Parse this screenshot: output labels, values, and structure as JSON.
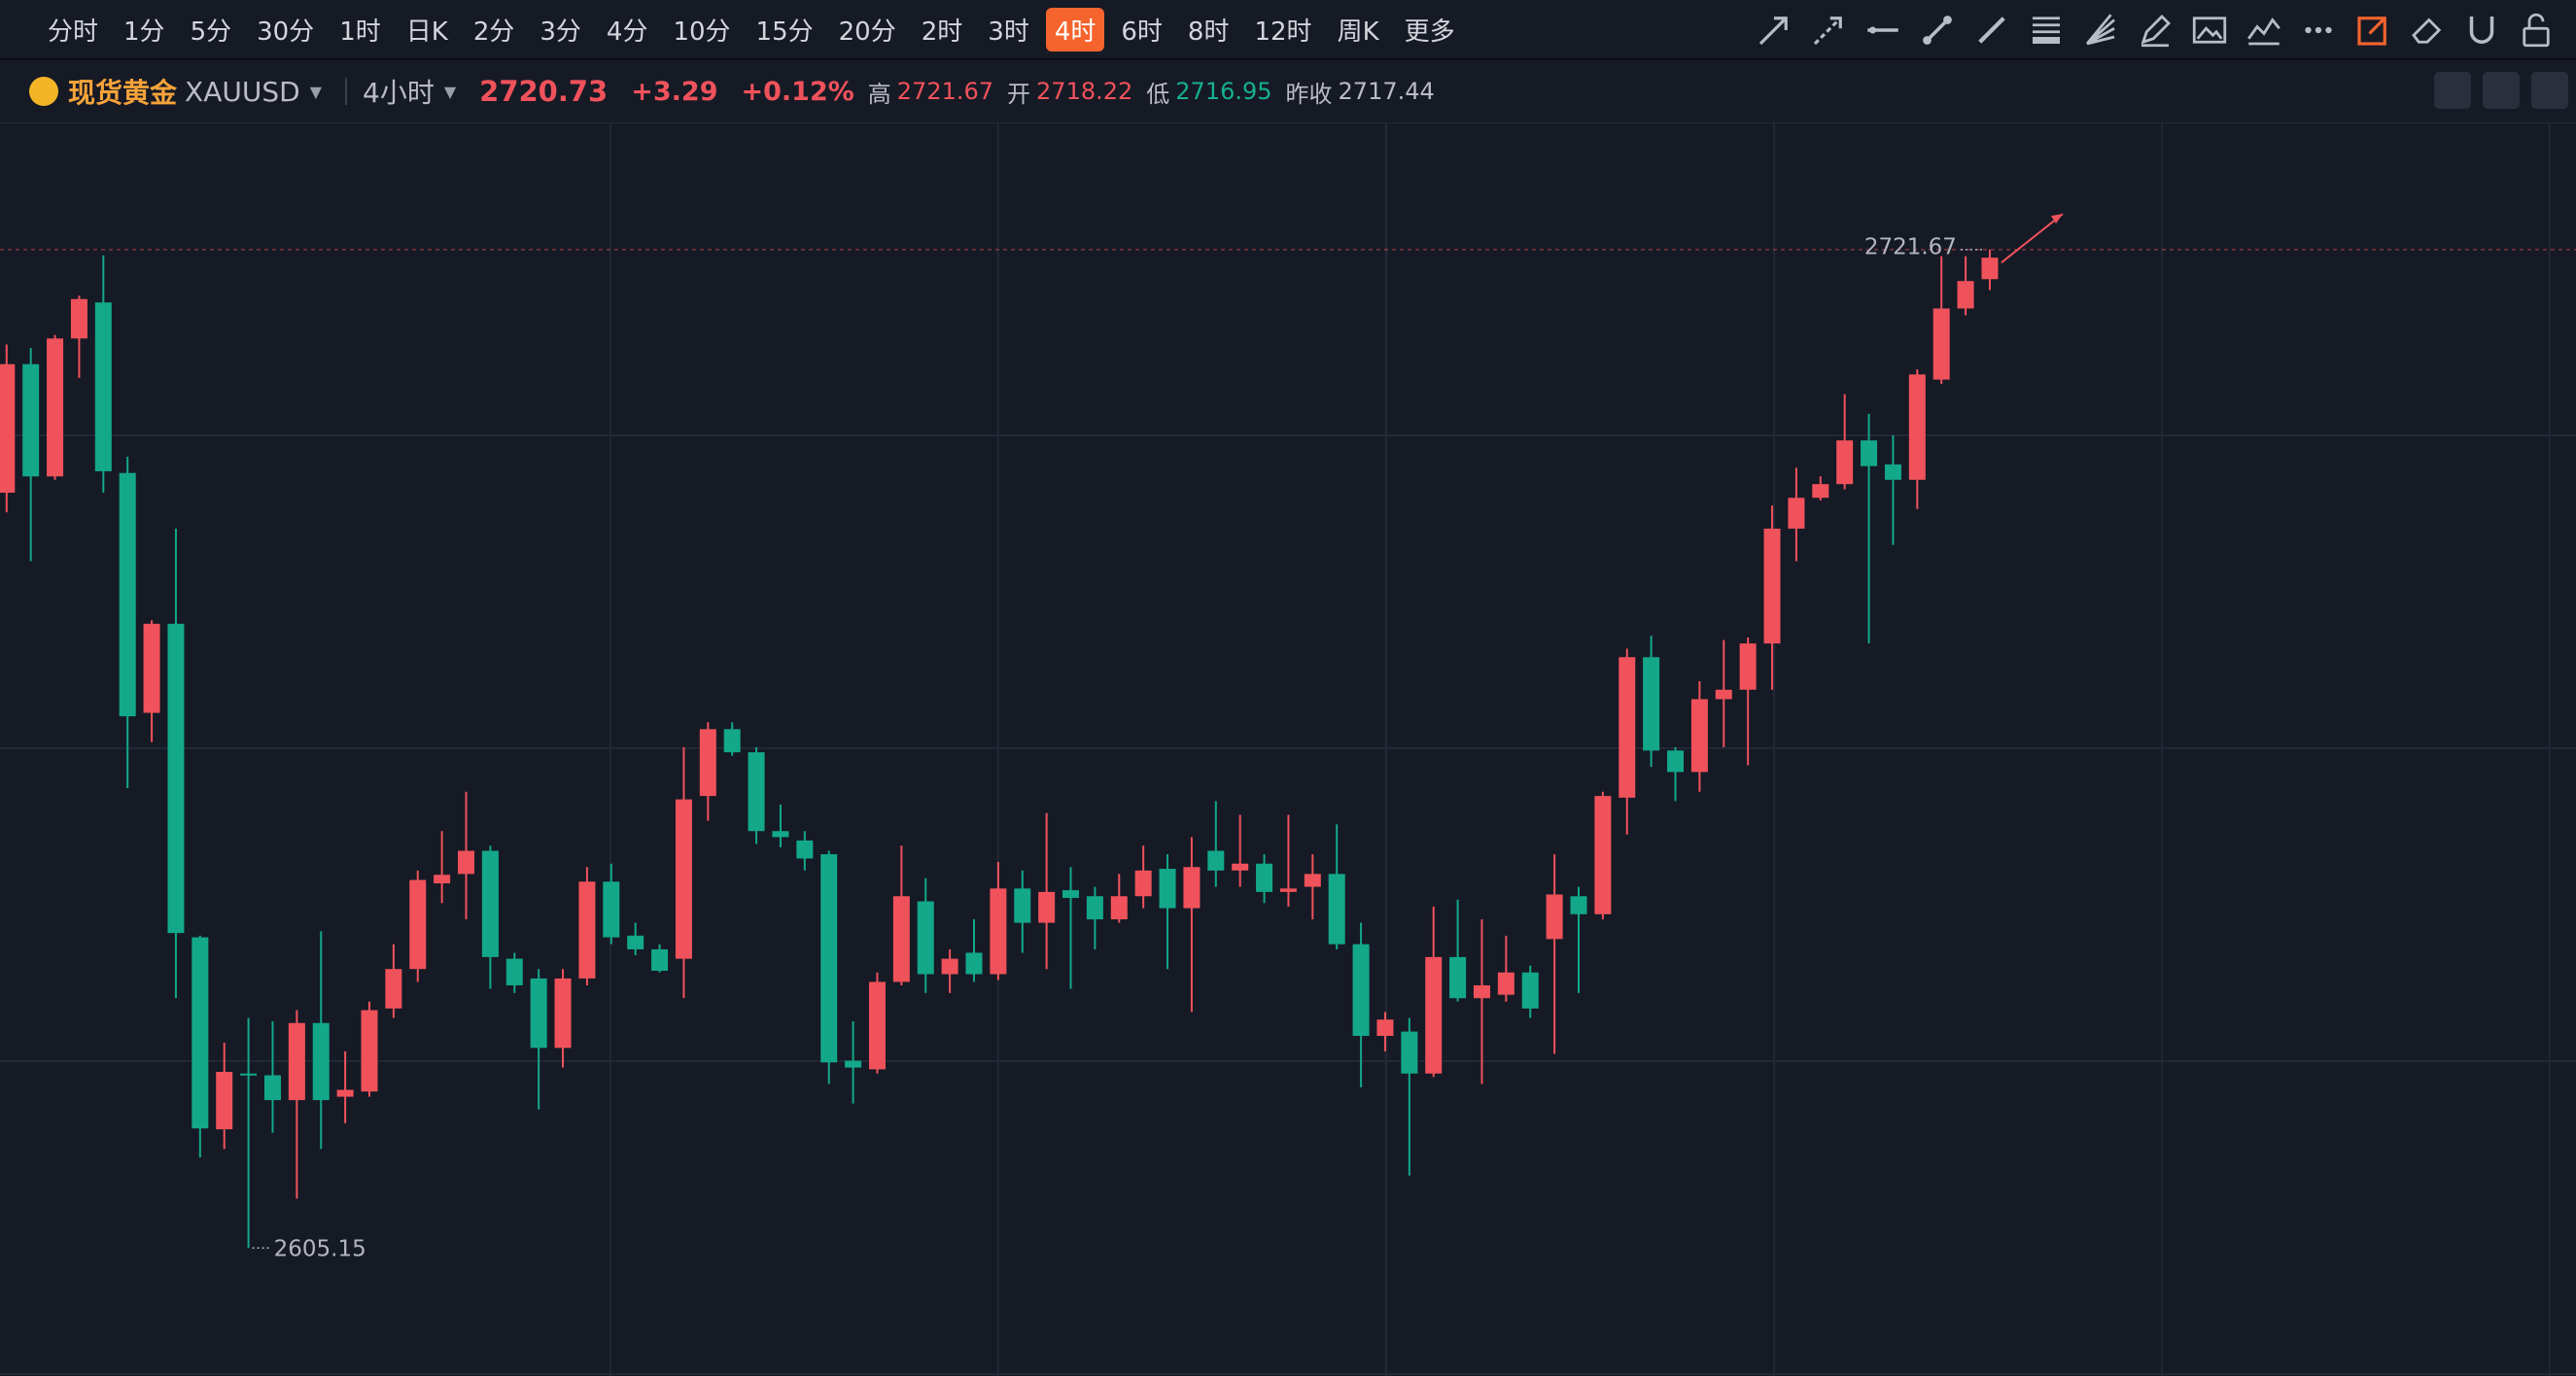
{
  "toolbar": {
    "items": [
      "分时",
      "1分",
      "5分",
      "30分",
      "1时",
      "日K",
      "2分",
      "3分",
      "4分",
      "10分",
      "15分",
      "20分",
      "2时",
      "3时",
      "4时",
      "6时",
      "8时",
      "12时",
      "周K",
      "更多"
    ],
    "selected": "4时"
  },
  "header": {
    "name": "现货黄金",
    "code": "XAUUSD",
    "interval": "4小时",
    "price": "2720.73",
    "change": "+3.29",
    "change_pct": "+0.12%",
    "high_label": "高",
    "high": "2721.67",
    "open_label": "开",
    "open": "2718.22",
    "low_label": "低",
    "low": "2716.95",
    "prev_label": "昨收",
    "prev": "2717.44"
  },
  "chart_data": {
    "type": "candlestick",
    "up_color": "#f0525b",
    "down_color": "#13a88a",
    "ylim": [
      2590.2,
      2736.4
    ],
    "open": [
      2693.3,
      2708.3,
      2695.2,
      2711.3,
      2715.5,
      2695.6,
      2667.6,
      2678.0,
      2641.4,
      2619.0,
      2625.5,
      2625.3,
      2622.4,
      2631.4,
      2622.8,
      2623.4,
      2633.1,
      2637.7,
      2647.7,
      2648.8,
      2651.5,
      2638.9,
      2636.6,
      2628.5,
      2636.6,
      2647.9,
      2641.6,
      2640.0,
      2638.9,
      2657.9,
      2665.7,
      2663.0,
      2653.8,
      2652.7,
      2651.1,
      2627.0,
      2626.0,
      2636.2,
      2645.6,
      2637.1,
      2639.6,
      2637.1,
      2647.1,
      2643.1,
      2646.9,
      2646.2,
      2643.5,
      2646.2,
      2649.4,
      2644.8,
      2651.5,
      2649.2,
      2650.0,
      2646.7,
      2647.3,
      2648.8,
      2640.6,
      2629.9,
      2630.4,
      2625.5,
      2639.1,
      2634.3,
      2634.7,
      2637.3,
      2641.2,
      2646.2,
      2644.1,
      2657.7,
      2674.1,
      2663.2,
      2660.7,
      2669.2,
      2670.3,
      2675.7,
      2689.1,
      2692.7,
      2694.3,
      2699.4,
      2696.6,
      2694.8,
      2706.5,
      2714.8,
      2718.22
    ],
    "high": [
      2710.6,
      2710.2,
      2711.7,
      2716.3,
      2721.0,
      2697.5,
      2678.4,
      2689.1,
      2641.6,
      2629.1,
      2632.0,
      2631.6,
      2632.9,
      2642.1,
      2628.1,
      2633.9,
      2640.6,
      2649.2,
      2653.8,
      2658.4,
      2652.1,
      2639.6,
      2637.7,
      2637.7,
      2649.6,
      2650.0,
      2643.1,
      2640.6,
      2663.6,
      2666.5,
      2666.5,
      2663.6,
      2656.9,
      2653.8,
      2651.5,
      2631.6,
      2637.3,
      2652.1,
      2648.3,
      2640.0,
      2643.5,
      2650.2,
      2649.2,
      2655.9,
      2649.6,
      2647.3,
      2648.8,
      2652.1,
      2651.1,
      2653.1,
      2657.3,
      2655.7,
      2651.1,
      2655.7,
      2651.1,
      2654.6,
      2643.1,
      2632.7,
      2632.0,
      2645.0,
      2645.8,
      2643.5,
      2641.6,
      2638.1,
      2651.1,
      2647.3,
      2658.4,
      2675.1,
      2676.6,
      2663.6,
      2671.3,
      2676.1,
      2676.4,
      2691.8,
      2696.2,
      2695.2,
      2704.8,
      2702.5,
      2700.0,
      2707.7,
      2720.9,
      2720.9,
      2721.67
    ],
    "low": [
      2691.0,
      2685.3,
      2694.8,
      2706.7,
      2693.3,
      2658.8,
      2664.2,
      2634.3,
      2615.7,
      2616.7,
      2605.15,
      2618.6,
      2610.9,
      2616.7,
      2619.7,
      2622.8,
      2632.0,
      2636.2,
      2645.4,
      2643.5,
      2635.4,
      2634.9,
      2621.3,
      2626.2,
      2635.8,
      2640.6,
      2639.3,
      2637.3,
      2634.3,
      2655.0,
      2662.6,
      2652.3,
      2651.9,
      2649.2,
      2624.3,
      2622.0,
      2625.5,
      2635.8,
      2634.9,
      2634.9,
      2636.2,
      2636.4,
      2639.6,
      2637.7,
      2635.4,
      2640.0,
      2643.1,
      2644.8,
      2637.7,
      2632.7,
      2647.3,
      2647.3,
      2645.4,
      2645.0,
      2643.5,
      2640.0,
      2623.9,
      2628.1,
      2613.6,
      2625.1,
      2633.9,
      2624.3,
      2633.9,
      2632.0,
      2627.8,
      2634.9,
      2643.5,
      2653.4,
      2661.3,
      2657.3,
      2658.4,
      2663.6,
      2661.5,
      2670.3,
      2685.3,
      2692.4,
      2693.7,
      2675.7,
      2687.2,
      2691.4,
      2706.0,
      2714.0,
      2716.95
    ],
    "close": [
      2708.3,
      2695.2,
      2711.3,
      2715.9,
      2695.8,
      2667.2,
      2678.0,
      2641.9,
      2619.1,
      2625.7,
      2625.3,
      2622.4,
      2631.4,
      2622.4,
      2623.6,
      2632.9,
      2637.7,
      2648.1,
      2648.7,
      2651.5,
      2639.1,
      2635.8,
      2628.5,
      2636.6,
      2647.9,
      2641.4,
      2640.0,
      2637.5,
      2657.5,
      2665.7,
      2663.0,
      2653.8,
      2653.1,
      2650.6,
      2626.8,
      2626.2,
      2636.2,
      2646.2,
      2637.1,
      2638.9,
      2637.1,
      2647.1,
      2643.1,
      2646.7,
      2646.0,
      2643.5,
      2646.2,
      2649.2,
      2644.8,
      2649.6,
      2649.2,
      2650.0,
      2646.7,
      2647.1,
      2648.8,
      2640.6,
      2629.9,
      2631.8,
      2625.5,
      2639.1,
      2634.3,
      2635.8,
      2637.3,
      2633.1,
      2646.4,
      2644.1,
      2657.9,
      2674.1,
      2663.2,
      2660.7,
      2669.2,
      2670.3,
      2675.7,
      2689.1,
      2692.7,
      2694.3,
      2699.4,
      2696.4,
      2694.8,
      2707.1,
      2714.8,
      2718.0,
      2720.73
    ],
    "max_label": 2721.67,
    "min_label": 2605.15
  }
}
